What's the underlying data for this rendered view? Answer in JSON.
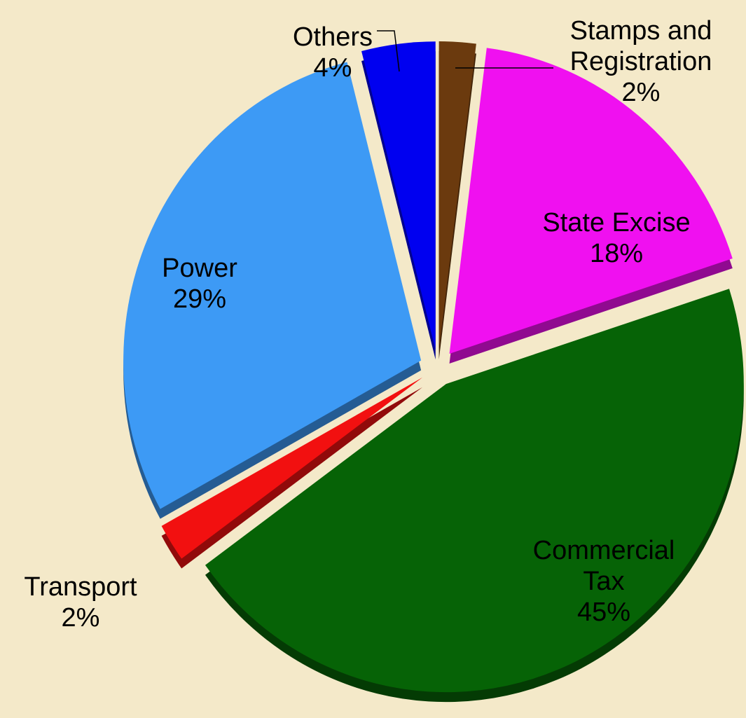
{
  "chart_data": {
    "type": "pie",
    "categories": [
      "Stamps and Registration",
      "State Excise",
      "Commercial Tax",
      "Transport",
      "Power",
      "Others"
    ],
    "values": [
      2,
      18,
      45,
      2,
      29,
      4
    ],
    "value_labels": [
      "2%",
      "18%",
      "45%",
      "2%",
      "29%",
      "4%"
    ],
    "colors": [
      "#6b3a0e",
      "#f010f0",
      "#066306",
      "#f21010",
      "#3d9af5",
      "#0000f0"
    ]
  }
}
